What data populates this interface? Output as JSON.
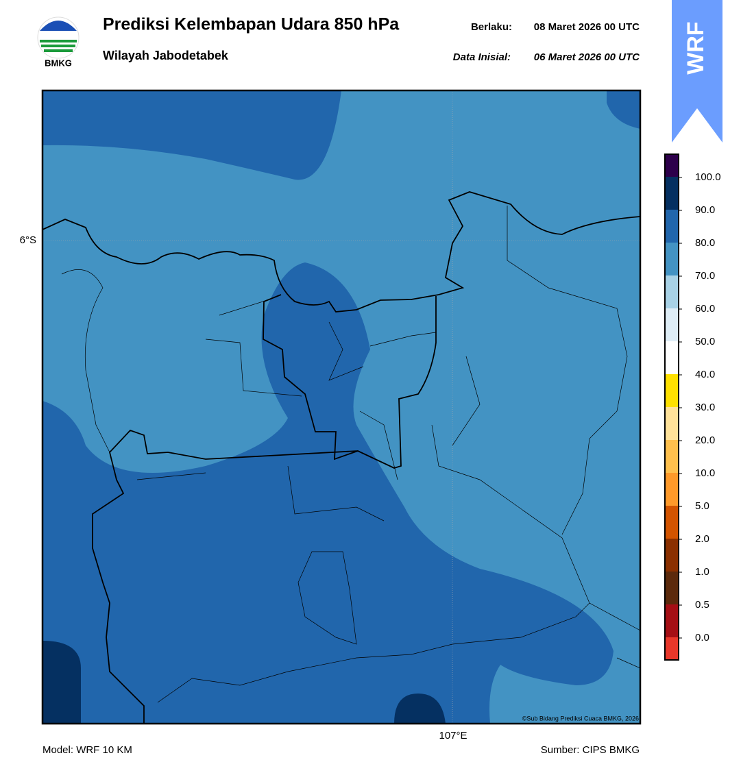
{
  "header": {
    "title": "Prediksi Kelembapan Udara 850 hPa",
    "subtitle": "Wilayah Jabodetabek",
    "valid_label": "Berlaku:",
    "valid_time": "08 Maret 2026 00 UTC",
    "init_label": "Data Inisial:",
    "init_time": "06 Maret 2026 00 UTC",
    "logo_text": "BMKG",
    "badge": "WRF"
  },
  "map": {
    "lat_label": "6°S",
    "lon_label": "107°E",
    "credit": "©Sub Bidang Prediksi Cuaca BMKG, 2026"
  },
  "colorbar": {
    "labels": [
      "100.0",
      "90.0",
      "80.0",
      "70.0",
      "60.0",
      "50.0",
      "40.0",
      "30.0",
      "20.0",
      "10.0",
      "5.0",
      "2.0",
      "1.0",
      "0.5",
      "0.0"
    ]
  },
  "footer": {
    "model": "Model: WRF 10 KM",
    "source": "Sumber: CIPS BMKG"
  }
}
